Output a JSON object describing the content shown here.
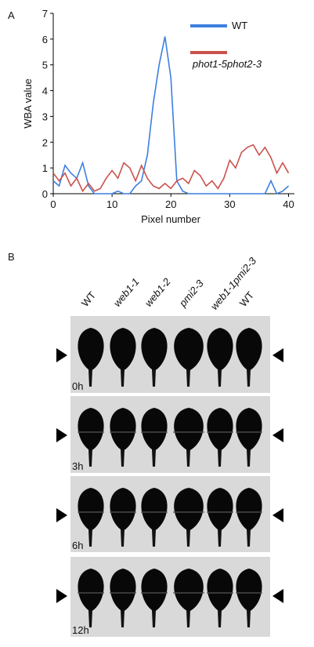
{
  "panel_labels": [
    "A",
    "B"
  ],
  "chart_data": {
    "type": "line",
    "xlabel": "Pixel number",
    "ylabel": "WBA value",
    "x": [
      0,
      1,
      2,
      3,
      4,
      5,
      6,
      7,
      8,
      9,
      10,
      11,
      12,
      13,
      14,
      15,
      16,
      17,
      18,
      19,
      20,
      21,
      22,
      23,
      24,
      25,
      26,
      27,
      28,
      29,
      30,
      31,
      32,
      33,
      34,
      35,
      36,
      37,
      38,
      39,
      40
    ],
    "series": [
      {
        "name": "WT",
        "color": "#3d7fe0",
        "values": [
          0.5,
          0.3,
          1.1,
          0.8,
          0.6,
          1.2,
          0.3,
          0,
          0,
          0,
          0,
          0.1,
          0,
          0,
          0.3,
          0.5,
          1.5,
          3.5,
          5.0,
          6.1,
          4.5,
          0.5,
          0.1,
          0,
          0,
          0,
          0,
          0,
          0,
          0,
          0,
          0,
          0,
          0,
          0,
          0,
          0,
          0.5,
          0,
          0.1,
          0.3
        ]
      },
      {
        "name": "phot1-5phot2-3",
        "color": "#c9524c",
        "values": [
          0.8,
          0.5,
          0.8,
          0.3,
          0.6,
          0.1,
          0.4,
          0.1,
          0.2,
          0.6,
          0.9,
          0.6,
          1.2,
          1.0,
          0.5,
          1.1,
          0.6,
          0.3,
          0.2,
          0.4,
          0.2,
          0.5,
          0.6,
          0.4,
          0.9,
          0.7,
          0.3,
          0.5,
          0.2,
          0.6,
          1.3,
          1.0,
          1.6,
          1.8,
          1.9,
          1.5,
          1.8,
          1.4,
          0.8,
          1.2,
          0.8
        ]
      }
    ],
    "xlim": [
      0,
      41
    ],
    "xticks": [
      0,
      10,
      20,
      30,
      40
    ],
    "ylim": [
      0,
      7
    ],
    "yticks": [
      0,
      1,
      2,
      3,
      4,
      5,
      6,
      7
    ],
    "legend": "upper right"
  },
  "panel_b": {
    "columns": [
      "WT",
      "web1-1",
      "web1-2",
      "pmi2-3",
      "web1-1pmi2-3",
      "WT"
    ],
    "rows": [
      "0h",
      "3h",
      "6h",
      "12h"
    ]
  }
}
